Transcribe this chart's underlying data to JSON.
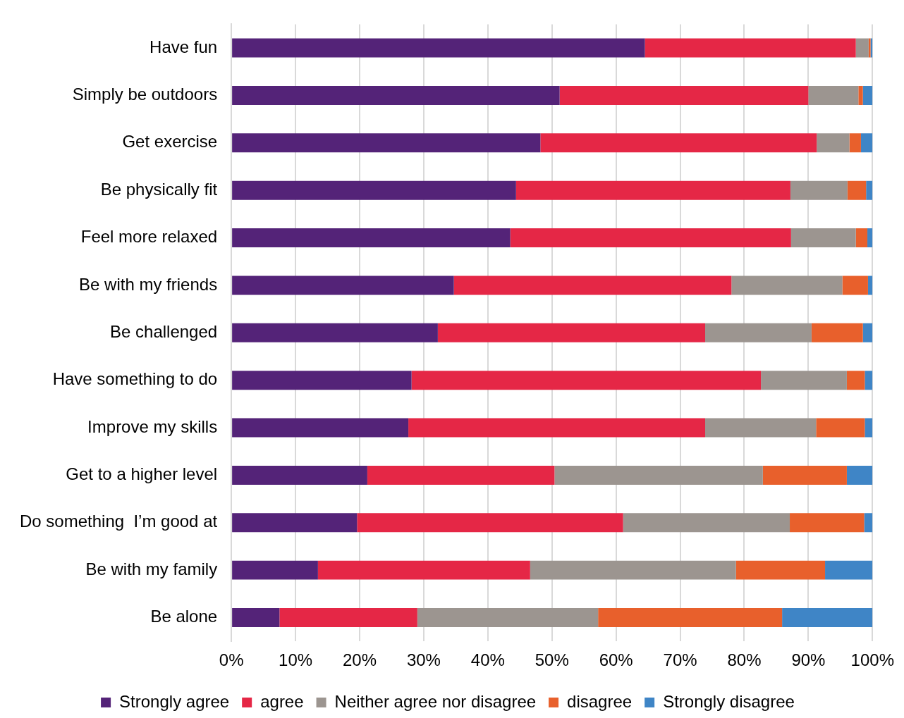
{
  "chart_data": {
    "type": "bar",
    "orientation": "horizontal",
    "stacked": true,
    "categories": [
      "Have fun",
      "Simply be outdoors",
      "Get exercise",
      "Be physically fit",
      "Feel more relaxed",
      "Be with my friends",
      "Be challenged",
      "Have something to do",
      "Improve my skills",
      "Get to a higher level",
      "Do something  I’m good at",
      "Be with my family",
      "Be alone"
    ],
    "series": [
      {
        "name": "Strongly agree",
        "color": "#542378",
        "values": [
          64.5,
          51.2,
          48.2,
          44.4,
          43.5,
          34.7,
          32.2,
          28.1,
          27.6,
          21.2,
          19.6,
          13.5,
          7.5
        ]
      },
      {
        "name": "agree",
        "color": "#e52746",
        "values": [
          32.9,
          38.8,
          43.1,
          42.8,
          43.8,
          43.3,
          41.7,
          54.5,
          46.3,
          29.2,
          41.5,
          33.1,
          21.5
        ]
      },
      {
        "name": "Neither agree nor disagree",
        "color": "#9c9590",
        "values": [
          2.0,
          7.8,
          5.1,
          8.9,
          10.1,
          17.3,
          16.6,
          13.4,
          17.3,
          32.5,
          26.0,
          32.1,
          28.2
        ]
      },
      {
        "name": "disagree",
        "color": "#e8602c",
        "values": [
          0.3,
          0.7,
          1.8,
          2.9,
          1.8,
          4.0,
          8.0,
          2.8,
          7.6,
          13.1,
          11.6,
          13.9,
          28.7
        ]
      },
      {
        "name": "Strongly disagree",
        "color": "#3f85c6",
        "values": [
          0.3,
          1.5,
          1.8,
          1.0,
          0.8,
          0.7,
          1.5,
          1.2,
          1.2,
          4.0,
          1.3,
          7.4,
          14.1
        ]
      }
    ],
    "xlim": [
      0,
      100
    ],
    "xticks": [
      {
        "value": 0,
        "label": "0%"
      },
      {
        "value": 10,
        "label": "10%"
      },
      {
        "value": 20,
        "label": "20%"
      },
      {
        "value": 30,
        "label": "30%"
      },
      {
        "value": 40,
        "label": "40%"
      },
      {
        "value": 50,
        "label": "50%"
      },
      {
        "value": 60,
        "label": "60%"
      },
      {
        "value": 70,
        "label": "70%"
      },
      {
        "value": 80,
        "label": "80%"
      },
      {
        "value": 90,
        "label": "90%"
      },
      {
        "value": 100,
        "label": "100%"
      }
    ],
    "grid": "x",
    "legend": "bottom"
  }
}
